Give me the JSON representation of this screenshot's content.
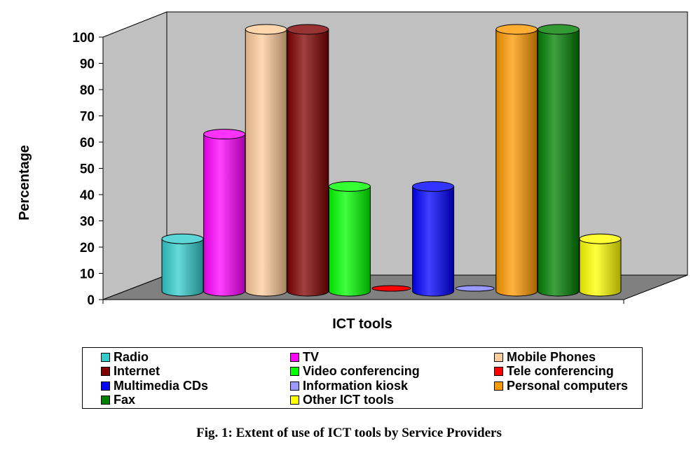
{
  "caption": "Fig. 1: Extent of use of ICT tools by Service Providers",
  "chart_data": {
    "type": "bar",
    "style": "3d-cylinder",
    "categories": [
      "Radio",
      "TV",
      "Mobile Phones",
      "Internet",
      "Video conferencing",
      "Tele conferencing",
      "Multimedia CDs",
      "Information kiosk",
      "Personal computers",
      "Fax",
      "Other ICT tools"
    ],
    "values": [
      20,
      60,
      100,
      100,
      40,
      0,
      40,
      0,
      100,
      100,
      20
    ],
    "colors": [
      "#33CCCC",
      "#FF00FF",
      "#FFCC99",
      "#800000",
      "#00FF00",
      "#FF0000",
      "#0000FF",
      "#9999FF",
      "#FF9900",
      "#008000",
      "#FFFF00"
    ],
    "xlabel": "ICT tools",
    "ylabel": "Percentage",
    "ylim": [
      0,
      100
    ],
    "yticks": [
      "0",
      "10",
      "20",
      "30",
      "40",
      "50",
      "60",
      "70",
      "80",
      "90",
      "100"
    ],
    "grid": false,
    "legend": "bottom",
    "wall_color": "#C0C0C0"
  }
}
